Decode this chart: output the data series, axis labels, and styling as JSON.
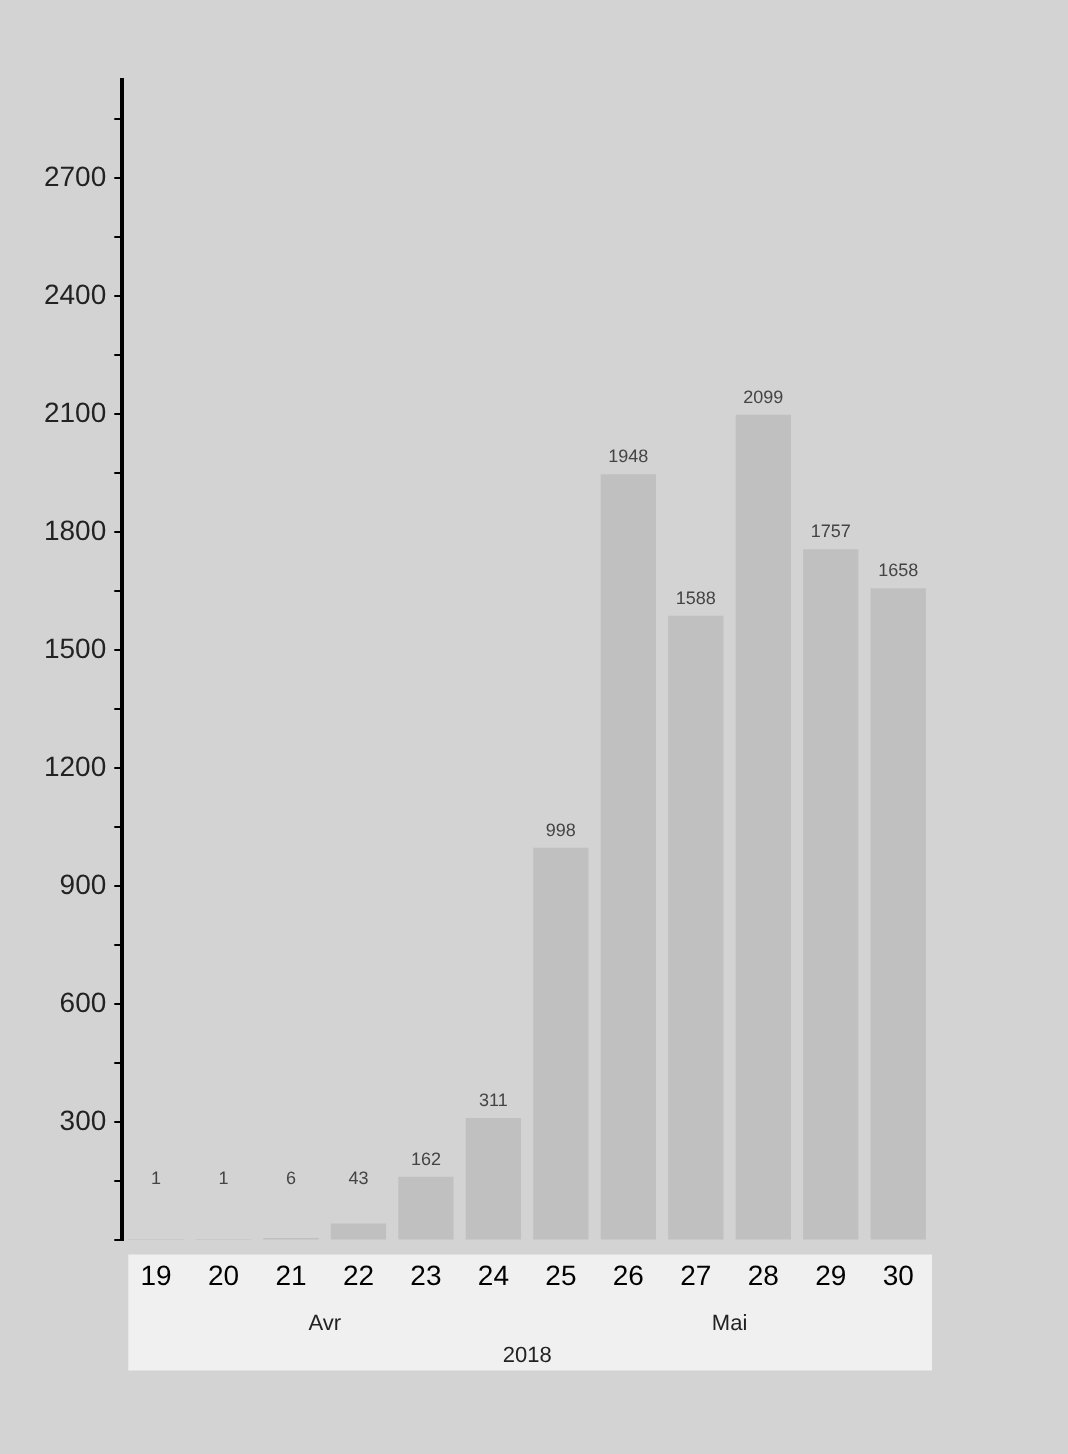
{
  "chart_data": {
    "type": "bar",
    "categories": [
      "19",
      "20",
      "21",
      "22",
      "23",
      "24",
      "25",
      "26",
      "27",
      "28",
      "29",
      "30"
    ],
    "values": [
      1,
      1,
      6,
      43,
      162,
      311,
      998,
      1948,
      1588,
      2099,
      1757,
      1658
    ],
    "color": "#c0c0c0",
    "data_labels": true,
    "grid": false,
    "legend": false,
    "ylim": [
      0,
      2950
    ],
    "yticks": [
      {
        "value": 0,
        "label": null
      },
      {
        "value": 150,
        "label": null
      },
      300,
      {
        "value": 450,
        "label": null
      },
      600,
      {
        "value": 750,
        "label": null
      },
      900,
      {
        "value": 1050,
        "label": null
      },
      1200,
      {
        "value": 1350,
        "label": null
      },
      1500,
      {
        "value": 1650,
        "label": null
      },
      1800,
      {
        "value": 1950,
        "label": null
      },
      2100,
      {
        "value": 2250,
        "label": null
      },
      2400,
      {
        "value": 2550,
        "label": null
      },
      2700,
      {
        "value": 2850,
        "label": null
      }
    ],
    "annotations": [
      "Avr",
      "Mai",
      "2018"
    ]
  }
}
